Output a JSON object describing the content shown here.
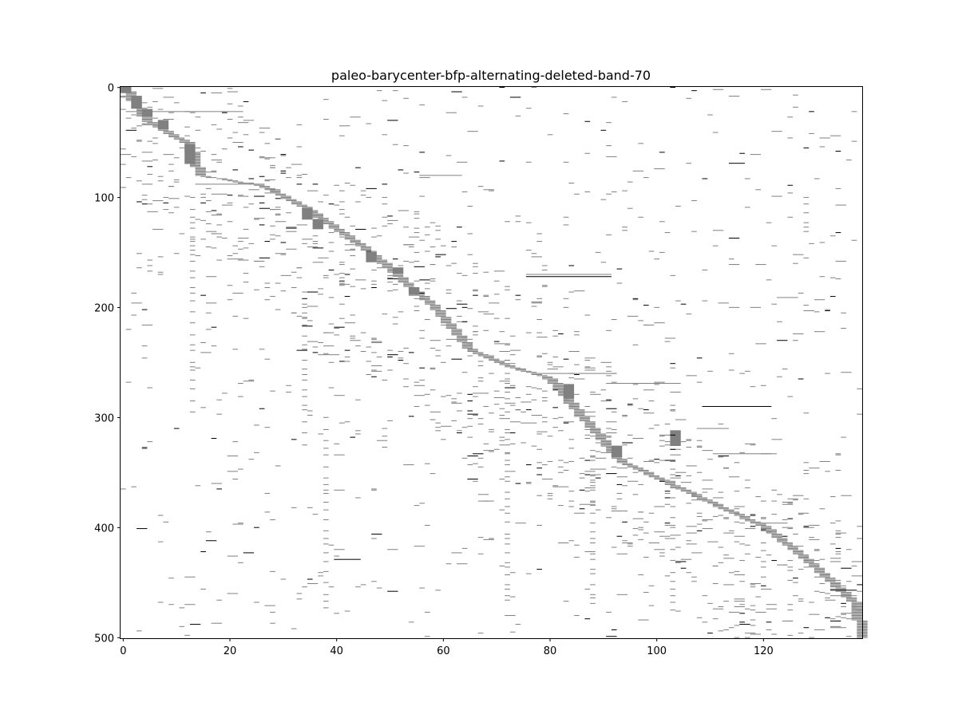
{
  "chart_data": {
    "type": "heatmap",
    "title": "paleo-barycenter-bfp-alternating-deleted-band-70",
    "xlabel": "",
    "ylabel": "",
    "xlim": [
      0,
      139
    ],
    "ylim": [
      501,
      0
    ],
    "x_ticks": [
      0,
      20,
      40,
      60,
      80,
      100,
      120
    ],
    "y_ticks": [
      0,
      100,
      200,
      300,
      400,
      500
    ],
    "grid": false,
    "colors": {
      "kept": "#808080",
      "deleted": "#000000",
      "background": "#ffffff"
    },
    "band": {
      "width": 2,
      "rows": 501
    },
    "band_blocks": [
      {
        "x": 0,
        "y0": 0,
        "y1": 8
      },
      {
        "x": 2,
        "y0": 8,
        "y1": 26
      },
      {
        "x": 4,
        "y0": 20,
        "y1": 30
      },
      {
        "x": 7,
        "y0": 30,
        "y1": 42
      },
      {
        "x": 12,
        "y0": 52,
        "y1": 80
      },
      {
        "x": 34,
        "y0": 110,
        "y1": 126
      },
      {
        "x": 36,
        "y0": 120,
        "y1": 134
      },
      {
        "x": 46,
        "y0": 150,
        "y1": 164
      },
      {
        "x": 51,
        "y0": 164,
        "y1": 172
      },
      {
        "x": 54,
        "y0": 182,
        "y1": 192
      },
      {
        "x": 83,
        "y0": 270,
        "y1": 290
      },
      {
        "x": 92,
        "y0": 326,
        "y1": 342
      },
      {
        "x": 103,
        "y0": 312,
        "y1": 334
      }
    ],
    "long_rows": [
      {
        "y": 22,
        "x0": 1,
        "x1": 22,
        "v": 1
      },
      {
        "y": 88,
        "x0": 14,
        "x1": 26,
        "v": 1
      },
      {
        "y": 80,
        "x0": 56,
        "x1": 63,
        "v": 1
      },
      {
        "y": 170,
        "x0": 76,
        "x1": 91,
        "v": 1
      },
      {
        "y": 172,
        "x0": 76,
        "x1": 91,
        "v": 2
      },
      {
        "y": 260,
        "x0": 79,
        "x1": 92,
        "v": 1
      },
      {
        "y": 269,
        "x0": 91,
        "x1": 104,
        "v": 1
      },
      {
        "y": 290,
        "x0": 109,
        "x1": 121,
        "v": 2
      },
      {
        "y": 310,
        "x0": 108,
        "x1": 113,
        "v": 1
      },
      {
        "y": 333,
        "x0": 111,
        "x1": 122,
        "v": 1
      },
      {
        "y": 396,
        "x0": 120,
        "x1": 124,
        "v": 1
      },
      {
        "y": 429,
        "x0": 40,
        "x1": 44,
        "v": 2
      },
      {
        "y": 462,
        "x0": 133,
        "x1": 137,
        "v": 1
      },
      {
        "y": 457,
        "x0": 133,
        "x1": 137,
        "v": 2
      }
    ],
    "noise_seed": 70
  }
}
